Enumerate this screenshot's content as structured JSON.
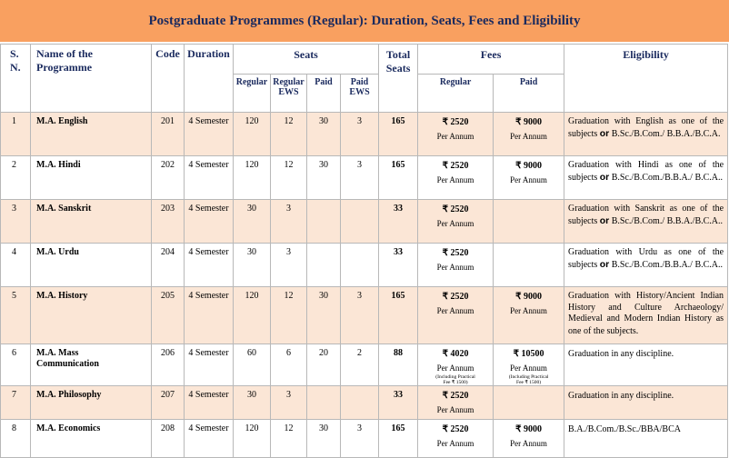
{
  "title": "Postgraduate Programmes (Regular): Duration, Seats, Fees and Eligibility",
  "headers": {
    "sn": [
      "S.",
      "N."
    ],
    "name": [
      "Name of the",
      "Programme"
    ],
    "code": "Code",
    "duration": "Duration",
    "seats": "Seats",
    "total": [
      "Total",
      "Seats"
    ],
    "fees": "Fees",
    "eligibility": "Eligibility",
    "seat_regular": "Regular",
    "seat_regular_ews": [
      "Regular",
      "EWS"
    ],
    "seat_paid": "Paid",
    "seat_paid_ews": [
      "Paid",
      "EWS"
    ],
    "fee_regular": "Regular",
    "fee_paid": "Paid"
  },
  "per_annum": "Per Annum",
  "practical_note": [
    "(Including Practical",
    "Fee ₹ 1500)"
  ],
  "rows": [
    {
      "sn": "1",
      "name": [
        "M.A. English"
      ],
      "code": "201",
      "duration": "4 Semester",
      "regular": "120",
      "regular_ews": "12",
      "paid": "30",
      "paid_ews": "3",
      "total": "165",
      "fee_regular": "₹ 2520",
      "fee_paid": "₹ 9000",
      "elig": [
        "Graduation with English as one of the subjects ",
        "or",
        " B.Sc./B.Com./ B.B.A./B.C.A."
      ]
    },
    {
      "sn": "2",
      "name": [
        "M.A. Hindi"
      ],
      "code": "202",
      "duration": "4 Semester",
      "regular": "120",
      "regular_ews": "12",
      "paid": "30",
      "paid_ews": "3",
      "total": "165",
      "fee_regular": "₹ 2520",
      "fee_paid": "₹ 9000",
      "elig": [
        "Graduation with Hindi as one of the subjects ",
        "or",
        " B.Sc./B.Com./B.B.A./ B.C.A.."
      ]
    },
    {
      "sn": "3",
      "name": [
        "M.A. Sanskrit"
      ],
      "code": "203",
      "duration": "4 Semester",
      "regular": "30",
      "regular_ews": "3",
      "paid": "",
      "paid_ews": "",
      "total": "33",
      "fee_regular": "₹ 2520",
      "fee_paid": "",
      "elig": [
        "Graduation with Sanskrit as one of the subjects ",
        "or",
        " B.Sc./B.Com./ B.B.A./B.C.A.."
      ]
    },
    {
      "sn": "4",
      "name": [
        "M.A. Urdu"
      ],
      "code": "204",
      "duration": "4 Semester",
      "regular": "30",
      "regular_ews": "3",
      "paid": "",
      "paid_ews": "",
      "total": "33",
      "fee_regular": "₹ 2520",
      "fee_paid": "",
      "elig": [
        "Graduation with Urdu as one of the subjects ",
        "or",
        " B.Sc./B.Com./B.B.A./ B.C.A.."
      ]
    },
    {
      "sn": "5",
      "name": [
        "M.A. History"
      ],
      "code": "205",
      "duration": "4 Semester",
      "regular": "120",
      "regular_ews": "12",
      "paid": "30",
      "paid_ews": "3",
      "total": "165",
      "fee_regular": "₹ 2520",
      "fee_paid": "₹ 9000",
      "elig": [
        "Graduation with History/Ancient Indian History and Culture Archaeology/ Medieval and Modern Indian History as one of the subjects.",
        "",
        ""
      ]
    },
    {
      "sn": "6",
      "name": [
        "M.A. Mass",
        "Communication"
      ],
      "code": "206",
      "duration": "4 Semester",
      "regular": "60",
      "regular_ews": "6",
      "paid": "20",
      "paid_ews": "2",
      "total": "88",
      "fee_regular": "₹ 4020",
      "fee_paid": "₹ 10500",
      "elig": [
        "Graduation in any discipline.",
        "",
        ""
      ]
    },
    {
      "sn": "7",
      "name": [
        "M.A. Philosophy"
      ],
      "code": "207",
      "duration": "4 Semester",
      "regular": "30",
      "regular_ews": "3",
      "paid": "",
      "paid_ews": "",
      "total": "33",
      "fee_regular": "₹ 2520",
      "fee_paid": "",
      "elig": [
        "Graduation in any discipline.",
        "",
        ""
      ]
    },
    {
      "sn": "8",
      "name": [
        "M.A. Economics"
      ],
      "code": "208",
      "duration": "4 Semester",
      "regular": "120",
      "regular_ews": "12",
      "paid": "30",
      "paid_ews": "3",
      "total": "165",
      "fee_regular": "₹ 2520",
      "fee_paid": "₹ 9000",
      "elig": [
        "B.A./B.Com./B.Sc./BBA/BCA",
        "",
        ""
      ]
    }
  ]
}
